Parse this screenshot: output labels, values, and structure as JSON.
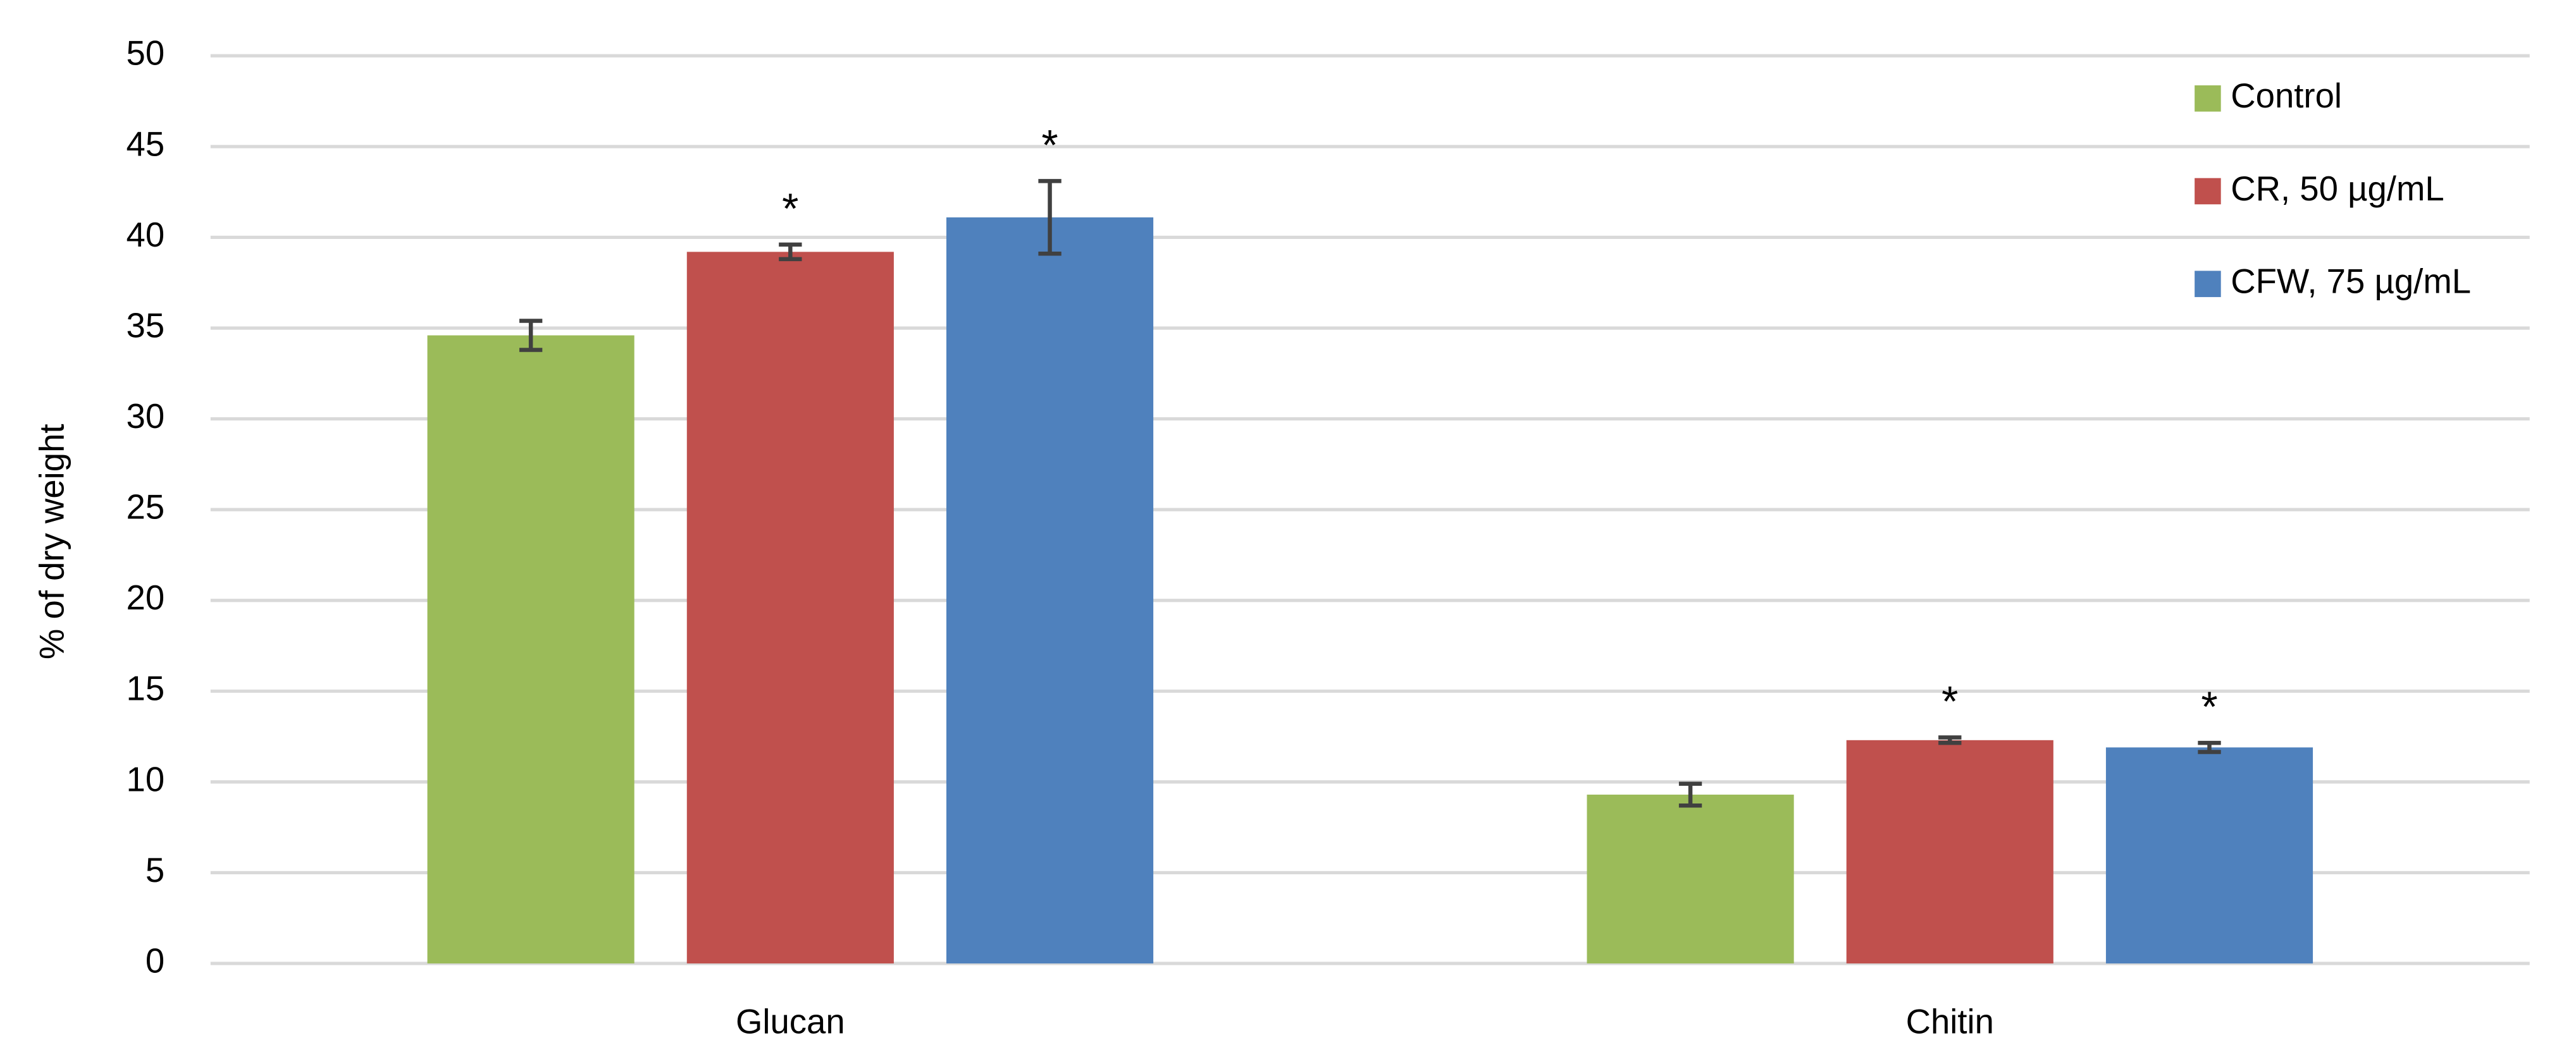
{
  "chart_data": {
    "type": "bar",
    "y_label": "% of dry weight",
    "categories": [
      "Glucan",
      "Chitin"
    ],
    "series": [
      {
        "name": "Control",
        "color": "#9bbb59",
        "values": [
          34.6,
          9.3
        ],
        "errors": [
          0.8,
          0.6
        ]
      },
      {
        "name": "CR, 50 µg/mL",
        "color": "#c0504d",
        "values": [
          39.2,
          12.3
        ],
        "errors": [
          0.4,
          0.15
        ],
        "annotations": [
          "*",
          "*"
        ]
      },
      {
        "name": "CFW, 75 µg/mL",
        "color": "#4f81bd",
        "values": [
          41.1,
          11.9
        ],
        "errors": [
          2.0,
          0.25
        ],
        "annotations": [
          "*",
          "*"
        ]
      }
    ],
    "ylim": [
      0,
      50
    ],
    "yticks": [
      0,
      5,
      10,
      15,
      20,
      25,
      30,
      35,
      40,
      45,
      50
    ],
    "grid": true,
    "legend": "top-right"
  }
}
